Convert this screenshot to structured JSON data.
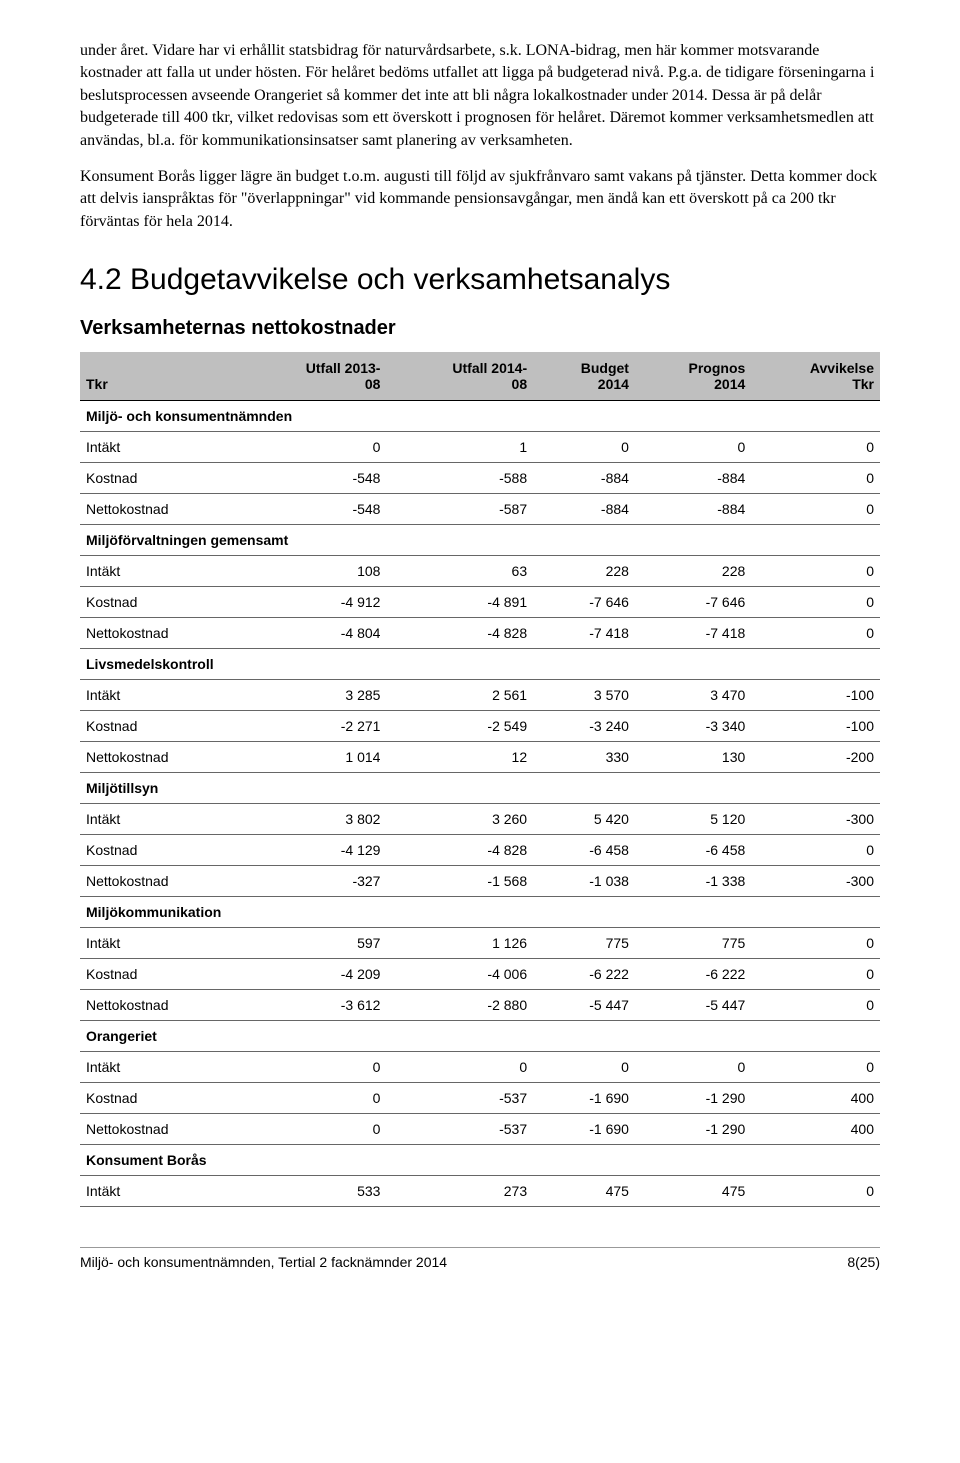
{
  "paragraphs": {
    "p1": "under året. Vidare har vi erhållit statsbidrag för naturvårdsarbete, s.k. LONA-bidrag, men här kommer motsvarande kostnader att falla ut under hösten. För helåret bedöms utfallet att ligga på budgeterad nivå. P.g.a. de tidigare förseningarna i beslutsprocessen avseende Orangeriet så kommer det inte att bli några lokalkostnader under 2014. Dessa är på delår budgeterade till 400 tkr, vilket redovisas som ett överskott i prognosen för helåret. Däremot kommer verksamhetsmedlen att användas, bl.a. för kommunikationsinsatser samt planering av verksamheten.",
    "p2": "Konsument Borås ligger lägre än budget t.o.m. augusti till följd av sjukfrånvaro samt vakans på tjänster. Detta kommer dock att delvis ianspråktas för \"överlappningar\" vid kommande pensionsavgångar, men ändå kan ett överskott på ca 200 tkr förväntas för hela 2014."
  },
  "section_heading": "4.2 Budgetavvikelse och verksamhetsanalys",
  "table_title": "Verksamheternas nettokostnader",
  "table": {
    "headers": {
      "col0": "Tkr",
      "col1_line1": "Utfall 2013-",
      "col1_line2": "08",
      "col2_line1": "Utfall 2014-",
      "col2_line2": "08",
      "col3_line1": "Budget",
      "col3_line2": "2014",
      "col4_line1": "Prognos",
      "col4_line2": "2014",
      "col5_line1": "Avvikelse",
      "col5_line2": "Tkr"
    },
    "groups": [
      {
        "label": "Miljö- och konsumentnämnden",
        "rows": [
          {
            "label": "Intäkt",
            "c1": "0",
            "c2": "1",
            "c3": "0",
            "c4": "0",
            "c5": "0"
          },
          {
            "label": "Kostnad",
            "c1": "-548",
            "c2": "-588",
            "c3": "-884",
            "c4": "-884",
            "c5": "0"
          },
          {
            "label": "Nettokostnad",
            "c1": "-548",
            "c2": "-587",
            "c3": "-884",
            "c4": "-884",
            "c5": "0"
          }
        ]
      },
      {
        "label": "Miljöförvaltningen gemensamt",
        "rows": [
          {
            "label": "Intäkt",
            "c1": "108",
            "c2": "63",
            "c3": "228",
            "c4": "228",
            "c5": "0"
          },
          {
            "label": "Kostnad",
            "c1": "-4 912",
            "c2": "-4 891",
            "c3": "-7 646",
            "c4": "-7 646",
            "c5": "0"
          },
          {
            "label": "Nettokostnad",
            "c1": "-4 804",
            "c2": "-4 828",
            "c3": "-7 418",
            "c4": "-7 418",
            "c5": "0"
          }
        ]
      },
      {
        "label": "Livsmedelskontroll",
        "rows": [
          {
            "label": "Intäkt",
            "c1": "3 285",
            "c2": "2 561",
            "c3": "3 570",
            "c4": "3 470",
            "c5": "-100"
          },
          {
            "label": "Kostnad",
            "c1": "-2 271",
            "c2": "-2 549",
            "c3": "-3 240",
            "c4": "-3 340",
            "c5": "-100"
          },
          {
            "label": "Nettokostnad",
            "c1": "1 014",
            "c2": "12",
            "c3": "330",
            "c4": "130",
            "c5": "-200"
          }
        ]
      },
      {
        "label": "Miljötillsyn",
        "rows": [
          {
            "label": "Intäkt",
            "c1": "3 802",
            "c2": "3 260",
            "c3": "5 420",
            "c4": "5 120",
            "c5": "-300"
          },
          {
            "label": "Kostnad",
            "c1": "-4 129",
            "c2": "-4 828",
            "c3": "-6 458",
            "c4": "-6 458",
            "c5": "0"
          },
          {
            "label": "Nettokostnad",
            "c1": "-327",
            "c2": "-1 568",
            "c3": "-1 038",
            "c4": "-1 338",
            "c5": "-300"
          }
        ]
      },
      {
        "label": "Miljökommunikation",
        "rows": [
          {
            "label": "Intäkt",
            "c1": "597",
            "c2": "1 126",
            "c3": "775",
            "c4": "775",
            "c5": "0"
          },
          {
            "label": "Kostnad",
            "c1": "-4 209",
            "c2": "-4 006",
            "c3": "-6 222",
            "c4": "-6 222",
            "c5": "0"
          },
          {
            "label": "Nettokostnad",
            "c1": "-3 612",
            "c2": "-2 880",
            "c3": "-5 447",
            "c4": "-5 447",
            "c5": "0"
          }
        ]
      },
      {
        "label": "Orangeriet",
        "rows": [
          {
            "label": "Intäkt",
            "c1": "0",
            "c2": "0",
            "c3": "0",
            "c4": "0",
            "c5": "0"
          },
          {
            "label": "Kostnad",
            "c1": "0",
            "c2": "-537",
            "c3": "-1 690",
            "c4": "-1 290",
            "c5": "400"
          },
          {
            "label": "Nettokostnad",
            "c1": "0",
            "c2": "-537",
            "c3": "-1 690",
            "c4": "-1 290",
            "c5": "400"
          }
        ]
      },
      {
        "label": "Konsument Borås",
        "rows": [
          {
            "label": "Intäkt",
            "c1": "533",
            "c2": "273",
            "c3": "475",
            "c4": "475",
            "c5": "0"
          }
        ]
      }
    ]
  },
  "footer": {
    "left": "Miljö- och konsumentnämnden, Tertial 2 facknämnder 2014",
    "right": "8(25)"
  }
}
